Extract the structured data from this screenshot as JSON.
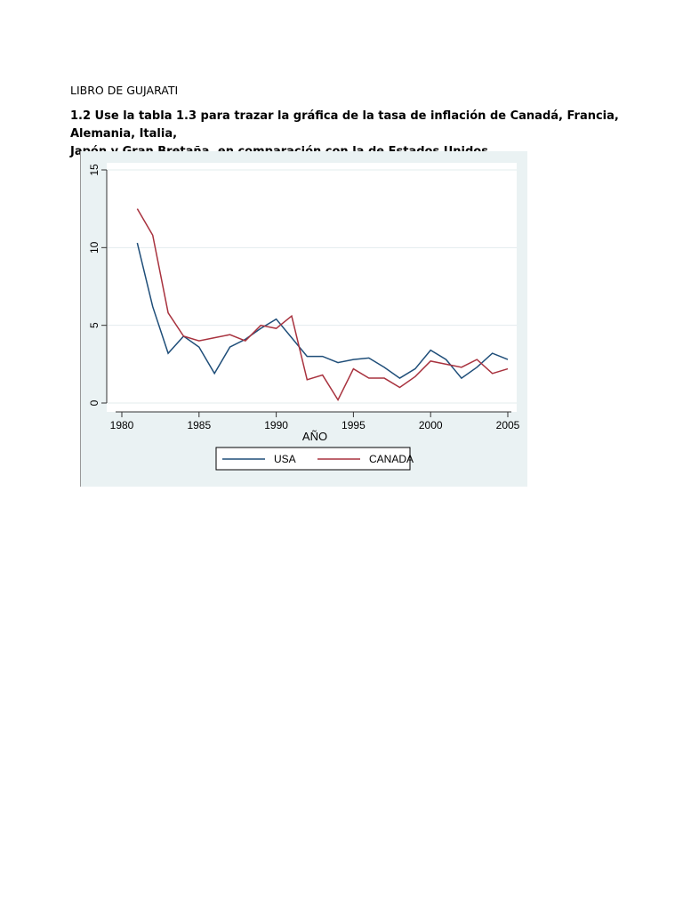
{
  "document": {
    "heading": "LIBRO DE GUJARATI",
    "question_line1": "1.2 Use la tabla 1.3 para trazar la gráfica de la tasa de inflación de Canadá, Francia, Alemania, Italia,",
    "question_line2": "Japón y Gran Bretaña, en comparación con la de Estados Unidos."
  },
  "chart_data": {
    "type": "line",
    "xlabel": "AÑO",
    "ylabel": "",
    "xlim": [
      1980,
      2005
    ],
    "ylim": [
      0,
      15
    ],
    "xticks": [
      "1980",
      "1985",
      "1990",
      "1995",
      "2000",
      "2005"
    ],
    "yticks": [
      "0",
      "5",
      "10",
      "15"
    ],
    "grid": true,
    "legend": "bottom",
    "x": [
      1981,
      1982,
      1983,
      1984,
      1985,
      1986,
      1987,
      1988,
      1989,
      1990,
      1991,
      1992,
      1993,
      1994,
      1995,
      1996,
      1997,
      1998,
      1999,
      2000,
      2001,
      2002,
      2003,
      2004,
      2005
    ],
    "series": [
      {
        "name": "USA",
        "color": "#1f4e79",
        "values": [
          10.3,
          6.2,
          3.2,
          4.3,
          3.6,
          1.9,
          3.6,
          4.1,
          4.8,
          5.4,
          4.2,
          3.0,
          3.0,
          2.6,
          2.8,
          2.9,
          2.3,
          1.6,
          2.2,
          3.4,
          2.8,
          1.6,
          2.3,
          3.2,
          2.8
        ]
      },
      {
        "name": "CANADA",
        "color": "#a8323e",
        "values": [
          12.5,
          10.8,
          5.8,
          4.3,
          4.0,
          4.2,
          4.4,
          4.0,
          5.0,
          4.8,
          5.6,
          1.5,
          1.8,
          0.2,
          2.2,
          1.6,
          1.6,
          1.0,
          1.7,
          2.7,
          2.5,
          2.3,
          2.8,
          1.9,
          2.2
        ]
      }
    ]
  }
}
